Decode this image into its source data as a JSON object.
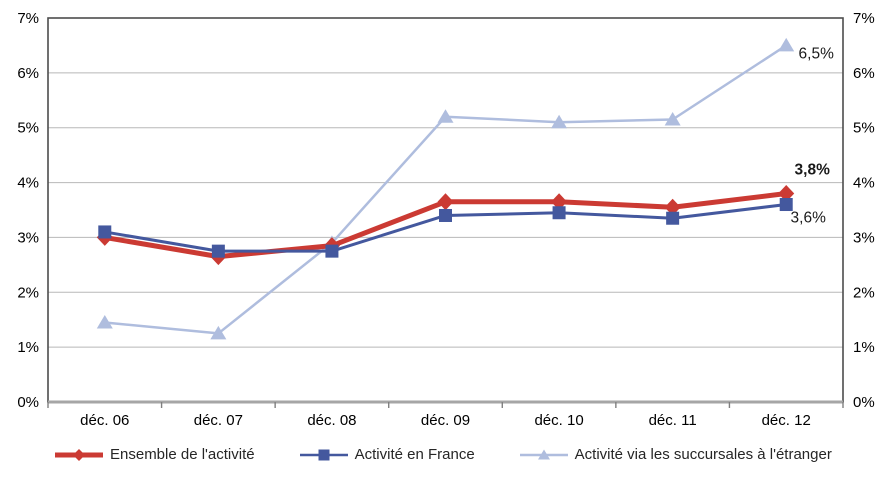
{
  "chart_data": {
    "type": "line",
    "title": "",
    "xlabel": "",
    "ylabel": "",
    "categories": [
      "déc. 06",
      "déc. 07",
      "déc. 08",
      "déc. 09",
      "déc. 10",
      "déc. 11",
      "déc. 12"
    ],
    "series": [
      {
        "name": "Ensemble de l'activité",
        "values": [
          3.0,
          2.65,
          2.85,
          3.65,
          3.65,
          3.55,
          3.8
        ],
        "color": "#CB3A33",
        "marker": "diamond",
        "line_width": 5
      },
      {
        "name": "Activité en France",
        "values": [
          3.1,
          2.75,
          2.75,
          3.4,
          3.45,
          3.35,
          3.6
        ],
        "color": "#44589E",
        "marker": "square",
        "line_width": 3
      },
      {
        "name": "Activité via les succursales à l'étranger",
        "values": [
          1.45,
          1.25,
          2.9,
          5.2,
          5.1,
          5.15,
          6.5
        ],
        "color": "#AFBDDE",
        "marker": "triangle",
        "line_width": 2.5
      }
    ],
    "annotations": [
      {
        "text": "3,8%",
        "series": 0,
        "point": 6,
        "bold": true
      },
      {
        "text": "3,6%",
        "series": 1,
        "point": 6,
        "bold": false
      },
      {
        "text": "6,5%",
        "series": 2,
        "point": 6,
        "bold": false
      }
    ],
    "y_ticks_left": [
      "0%",
      "1%",
      "2%",
      "3%",
      "4%",
      "5%",
      "6%",
      "7%"
    ],
    "y_ticks_right": [
      "0%",
      "1%",
      "2%",
      "3%",
      "4%",
      "5%",
      "6%",
      "7%"
    ],
    "ylim": [
      0,
      7
    ],
    "grid": true,
    "legend_position": "bottom",
    "colors": {
      "gridline": "#B8B8B8",
      "plot_border": "#4D4D4D",
      "bottom_axis": "#A6A6A6",
      "tick": "#7F7F7F",
      "axis_text": "#000000",
      "annotation_text": "#1A1A1A"
    }
  }
}
